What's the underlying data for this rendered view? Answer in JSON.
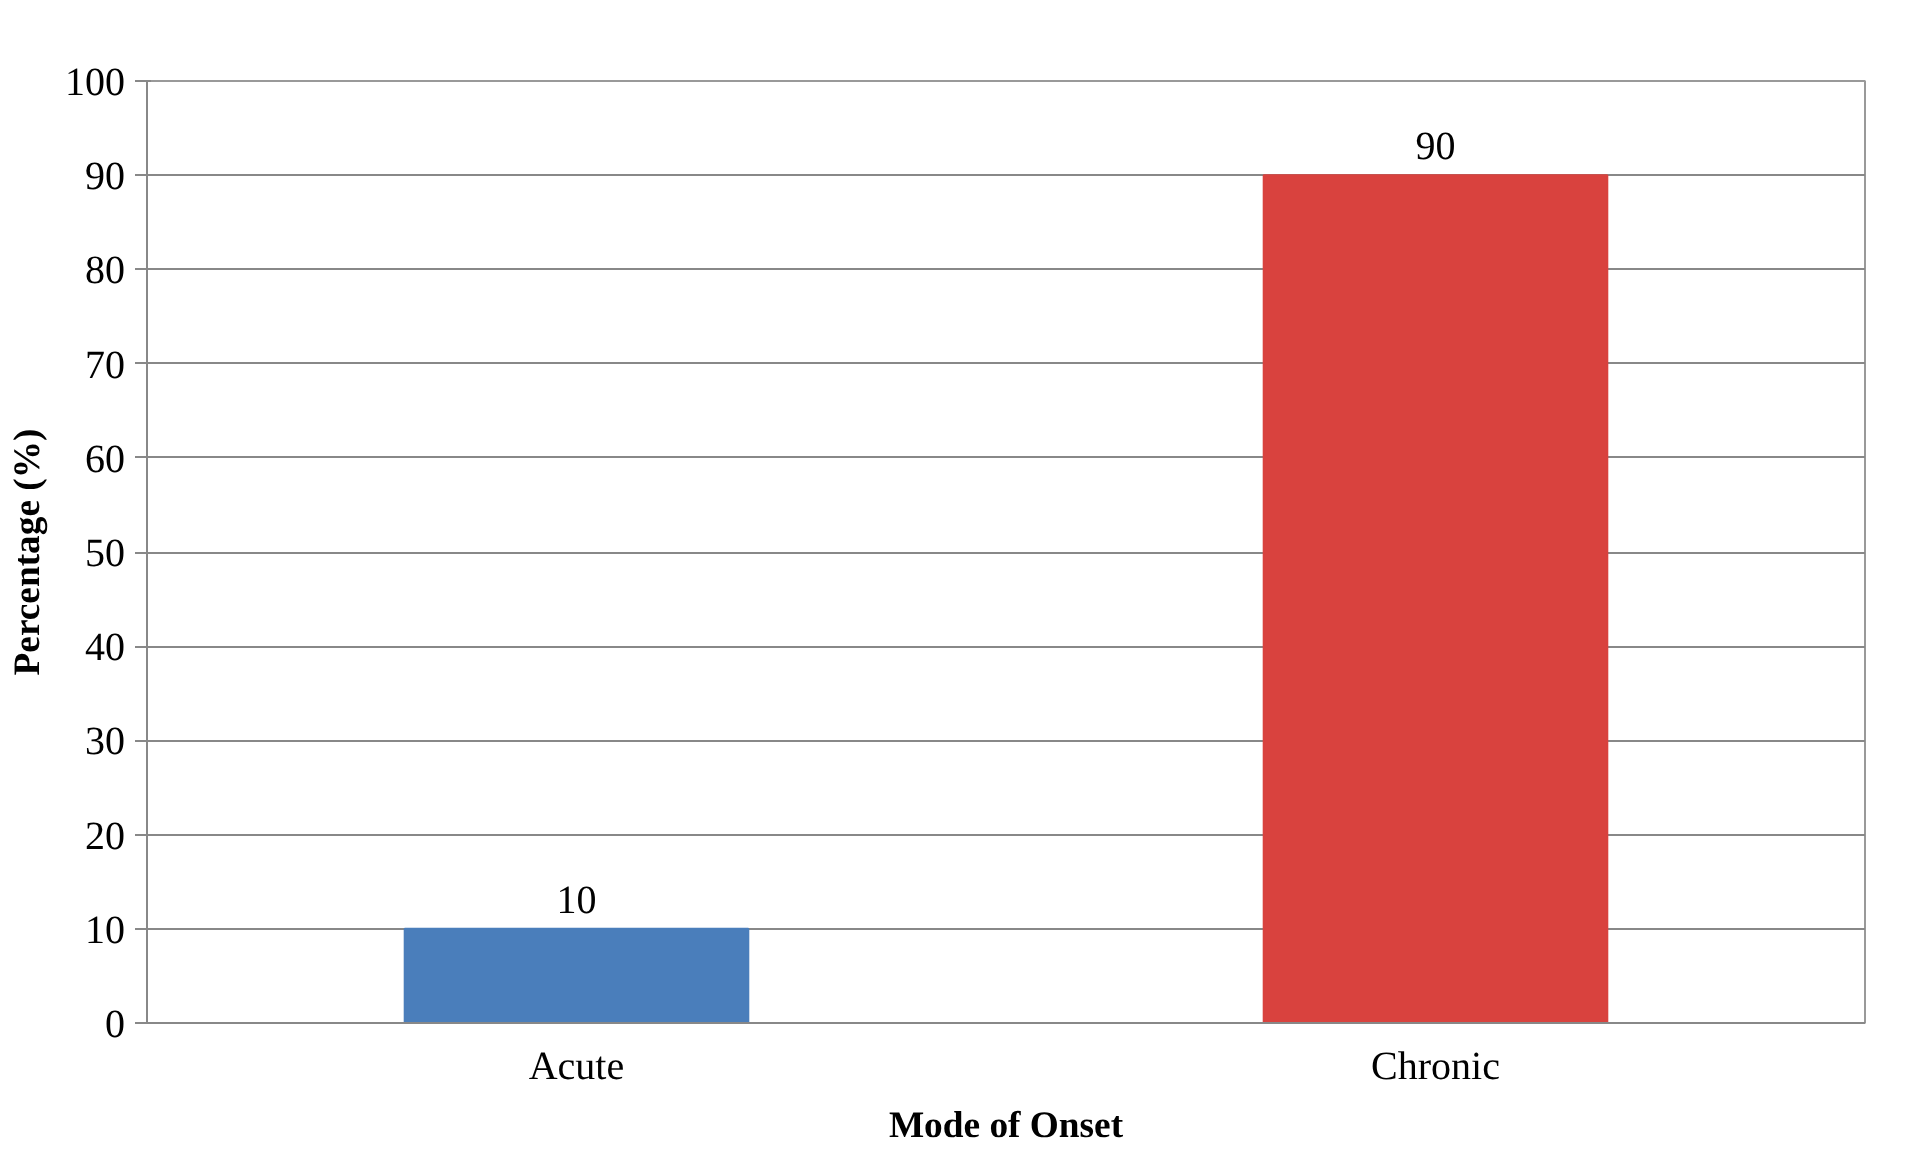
{
  "chart_data": {
    "type": "bar",
    "xlabel": "Mode of Onset",
    "ylabel": "Percentage (%)",
    "categories": [
      "Acute",
      "Chronic"
    ],
    "values": [
      10,
      90
    ],
    "colors": [
      "#4a7ebb",
      "#d9423e"
    ],
    "ylim": [
      0,
      100
    ],
    "yticks": [
      0,
      10,
      20,
      30,
      40,
      50,
      60,
      70,
      80,
      90,
      100
    ],
    "grid": "y",
    "data_labels": true
  }
}
